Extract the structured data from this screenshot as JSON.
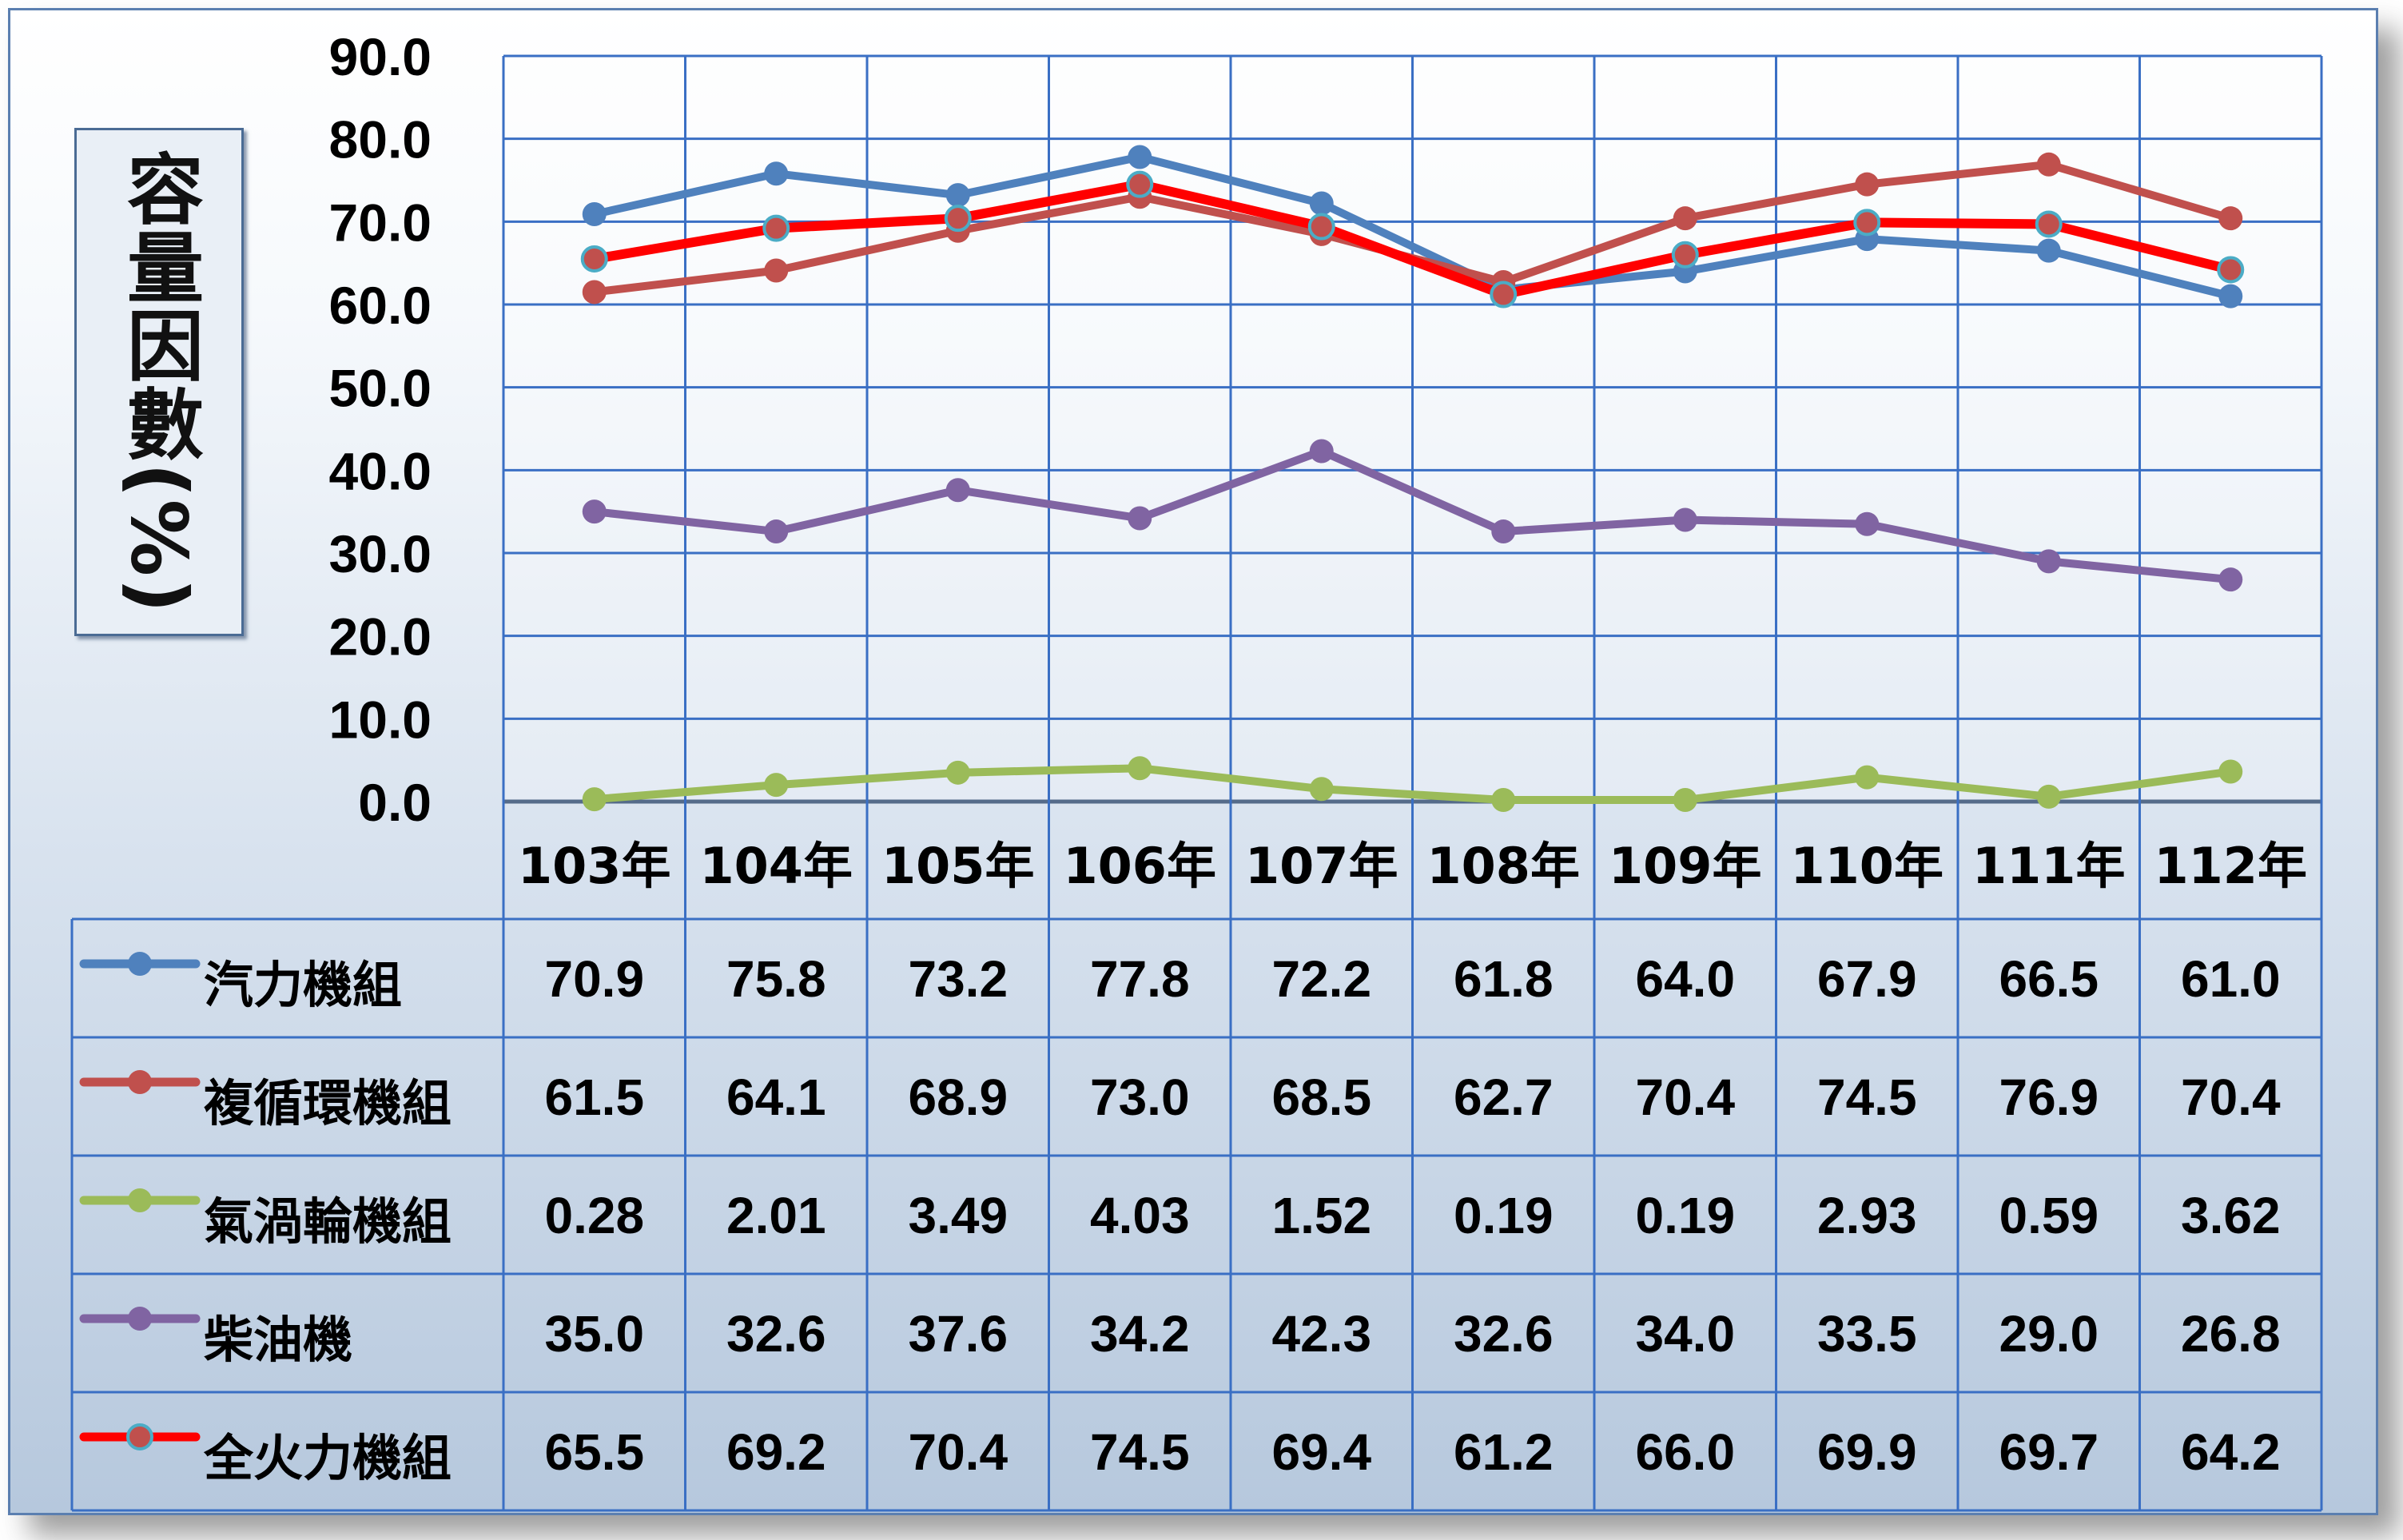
{
  "chart_data": {
    "type": "line",
    "ylabel": "容量因數(%)",
    "ylim": [
      0,
      90
    ],
    "yticks": [
      "0.0",
      "10.0",
      "20.0",
      "30.0",
      "40.0",
      "50.0",
      "60.0",
      "70.0",
      "80.0",
      "90.0"
    ],
    "grid": true,
    "legend": "data-table",
    "categories": [
      "103年",
      "104年",
      "105年",
      "106年",
      "107年",
      "108年",
      "109年",
      "110年",
      "111年",
      "112年"
    ],
    "series": [
      {
        "name": "汽力機組",
        "color": "#4f81bd",
        "values": [
          70.9,
          75.8,
          73.2,
          77.8,
          72.2,
          61.8,
          64.0,
          67.9,
          66.5,
          61.0
        ],
        "labels": [
          "70.9",
          "75.8",
          "73.2",
          "77.8",
          "72.2",
          "61.8",
          "64.0",
          "67.9",
          "66.5",
          "61.0"
        ]
      },
      {
        "name": "複循環機組",
        "color": "#c0504d",
        "values": [
          61.5,
          64.1,
          68.9,
          73.0,
          68.5,
          62.7,
          70.4,
          74.5,
          76.9,
          70.4
        ],
        "labels": [
          "61.5",
          "64.1",
          "68.9",
          "73.0",
          "68.5",
          "62.7",
          "70.4",
          "74.5",
          "76.9",
          "70.4"
        ]
      },
      {
        "name": "氣渦輪機組",
        "color": "#9bbb59",
        "values": [
          0.28,
          2.01,
          3.49,
          4.03,
          1.52,
          0.19,
          0.19,
          2.93,
          0.59,
          3.62
        ],
        "labels": [
          "0.28",
          "2.01",
          "3.49",
          "4.03",
          "1.52",
          "0.19",
          "0.19",
          "2.93",
          "0.59",
          "3.62"
        ]
      },
      {
        "name": "柴油機",
        "color": "#8064a2",
        "values": [
          35.0,
          32.6,
          37.6,
          34.2,
          42.3,
          32.6,
          34.0,
          33.5,
          29.0,
          26.8
        ],
        "labels": [
          "35.0",
          "32.6",
          "37.6",
          "34.2",
          "42.3",
          "32.6",
          "34.0",
          "33.5",
          "29.0",
          "26.8"
        ]
      },
      {
        "name": "全火力機組",
        "color": "#ff0000",
        "marker_color": "#c0504d",
        "marker_ring": "#4bacc6",
        "values": [
          65.5,
          69.2,
          70.4,
          74.5,
          69.4,
          61.2,
          66.0,
          69.9,
          69.7,
          64.2
        ],
        "labels": [
          "65.5",
          "69.2",
          "70.4",
          "74.5",
          "69.4",
          "61.2",
          "66.0",
          "69.9",
          "69.7",
          "64.2"
        ]
      }
    ]
  }
}
